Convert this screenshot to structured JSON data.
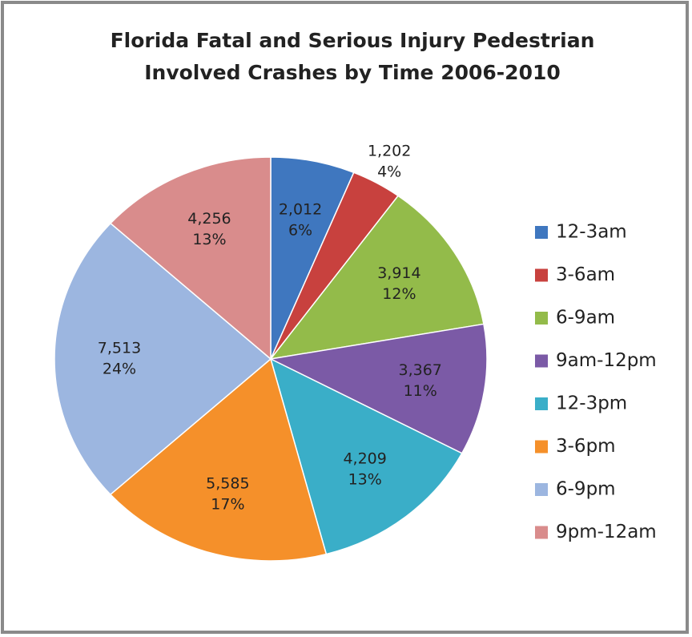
{
  "chart_data": {
    "type": "pie",
    "title": [
      "Florida Fatal and Serious Injury Pedestrian",
      "Involved Crashes by Time 2006-2010"
    ],
    "categories": [
      "12-3am",
      "3-6am",
      "6-9am",
      "9am-12pm",
      "12-3pm",
      "3-6pm",
      "6-9pm",
      "9pm-12am"
    ],
    "values": [
      2012,
      1202,
      3914,
      3367,
      4209,
      5585,
      7513,
      4256
    ],
    "value_labels": [
      "2,012",
      "1,202",
      "3,914",
      "3,367",
      "4,209",
      "5,585",
      "7,513",
      "4,256"
    ],
    "percents": [
      6,
      4,
      12,
      11,
      13,
      17,
      24,
      13
    ],
    "percent_labels": [
      "6%",
      "4%",
      "12%",
      "11%",
      "13%",
      "17%",
      "24%",
      "13%"
    ],
    "colors": [
      "#3f77bf",
      "#c8413e",
      "#93bb4a",
      "#7b5aa6",
      "#3aaec8",
      "#f5902a",
      "#9cb6e0",
      "#d98c8c"
    ],
    "legend": "right"
  }
}
